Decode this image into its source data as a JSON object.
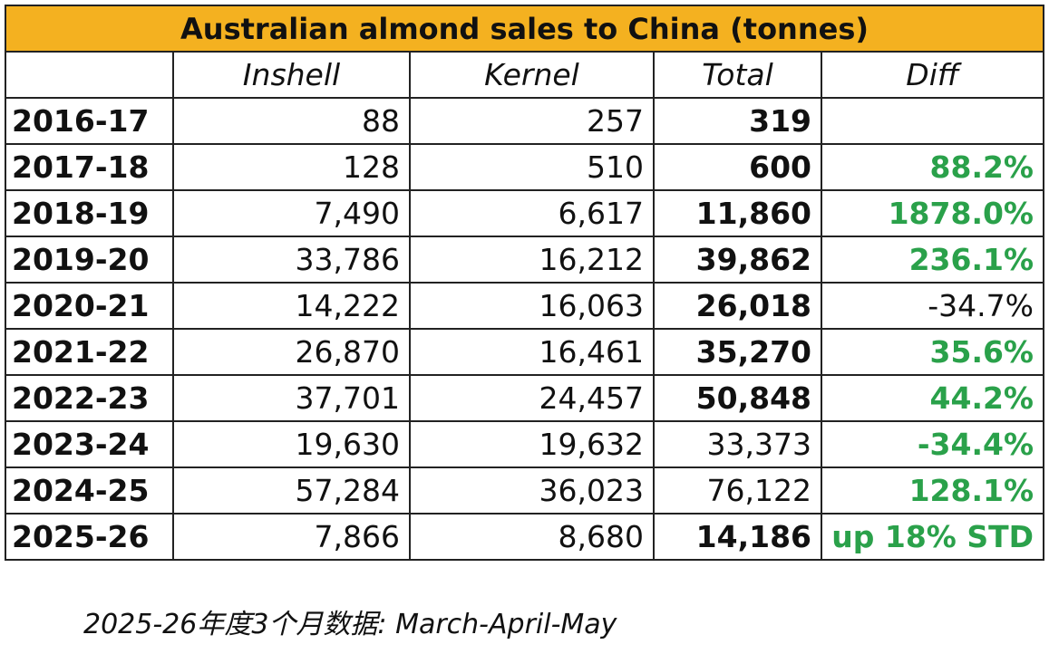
{
  "table": {
    "title": "Australian almond sales to China (tonnes)",
    "columns": [
      "Inshell",
      "Kernel",
      "Total",
      "Diff"
    ],
    "rows": [
      [
        "2016-17",
        "88",
        "257",
        "319"
      ],
      [
        "2017-18",
        "128",
        "510",
        "600",
        "88.2%"
      ],
      [
        "2018-19",
        "7,490",
        "6,617",
        "11,860",
        "1878.0%"
      ],
      [
        "2019-20",
        "33,786",
        "16,212",
        "39,862",
        "236.1%"
      ],
      [
        "2020-21",
        "14,222",
        "16,063",
        "26,018",
        "-34.7%"
      ],
      [
        "2021-22",
        "26,870",
        "16,461",
        "35,270",
        "35.6%"
      ],
      [
        "2022-23",
        "37,701",
        "24,457",
        "50,848",
        "44.2%"
      ],
      [
        "2023-24",
        "19,630",
        "19,632",
        "33,373",
        "-34.4%"
      ],
      [
        "2024-25",
        "57,284",
        "36,023",
        "76,122",
        "128.1%"
      ],
      [
        "2025-26",
        "7,866",
        "8,680",
        "14,186",
        "up 18% STD"
      ]
    ],
    "note": "2025-26年度3个月数据: March-April-May"
  }
}
